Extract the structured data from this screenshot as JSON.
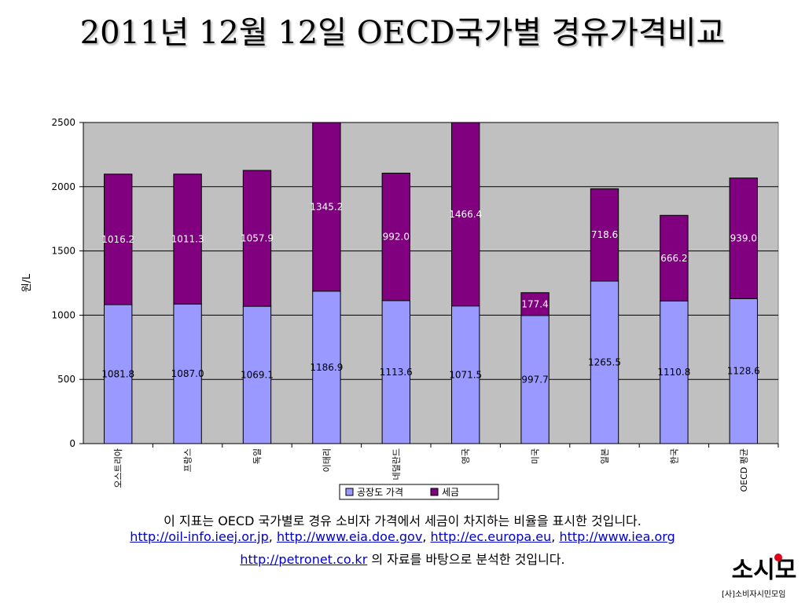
{
  "title": "2011년 12월 12일 OECD국가별 경유가격비교",
  "footnote": {
    "line1": "이 지표는 OECD 국가별로 경유 소비자 가격에서 세금이 차지하는 비율을 표시한 것입니다.",
    "links": [
      "http://oil-info.ieej.or.jp",
      "http://www.eia.doe.gov",
      "http://ec.europa.eu",
      "http://www.iea.org",
      "http://petronet.co.kr"
    ],
    "sep": ", ",
    "line3_suffix": " 의 자료를 바탕으로 분석한 것입니다."
  },
  "logo": {
    "mark_text": "소시모",
    "caption": "[사]소비자시민모임",
    "colors": {
      "text": "#000000",
      "accent": "#e0001a"
    }
  },
  "chart_data": {
    "type": "bar",
    "stacked": true,
    "categories": [
      "오스트리아",
      "프랑스",
      "독일",
      "이태리",
      "네덜란드",
      "영국",
      "미국",
      "일본",
      "한국",
      "OECD 평균"
    ],
    "series": [
      {
        "name": "공장도 가격",
        "color": "#9999ff",
        "values": [
          1081.8,
          1087.0,
          1069.1,
          1186.9,
          1113.6,
          1071.5,
          997.7,
          1265.5,
          1110.8,
          1128.6
        ]
      },
      {
        "name": "세금",
        "color": "#800080",
        "values": [
          1016.2,
          1011.3,
          1057.9,
          1345.2,
          992.0,
          1466.4,
          177.4,
          718.6,
          666.2,
          939.0
        ]
      }
    ],
    "value_labels": [
      [
        "1081.8",
        "1087.0",
        "1069.1",
        "1186.9",
        "1113.6",
        "1071.5",
        "997.7",
        "1265.5",
        "1110.8",
        "1128.6"
      ],
      [
        "1016.2",
        "1011.3",
        "1057.9",
        "1345.2",
        "992.0",
        "1466.4",
        "177.4",
        "718.6",
        "666.2",
        "939.0"
      ]
    ],
    "ylabel": "원/L",
    "xlabel": "",
    "ylim": [
      0,
      2500
    ],
    "yticks": [
      0,
      500,
      1000,
      1500,
      2000,
      2500
    ],
    "grid": true,
    "plot_background": "#c0c0c0",
    "legend_position": "bottom"
  }
}
